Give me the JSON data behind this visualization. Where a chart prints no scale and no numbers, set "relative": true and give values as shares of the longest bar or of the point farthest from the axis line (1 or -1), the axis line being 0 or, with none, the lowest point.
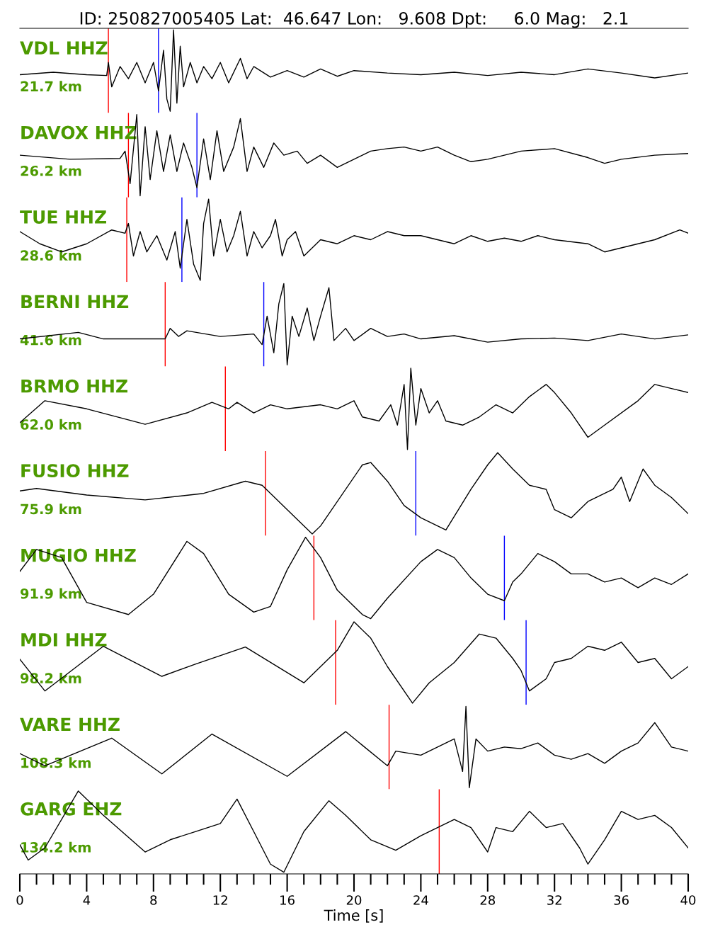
{
  "chart_data": [
    {
      "type": "line",
      "relative": true,
      "title": "ID: 250827005405 Lat:  46.647 Lon:   9.608 Dpt:     6.0 Mag:   2.1",
      "annotations": [
        "VDL HHZ",
        "21.7 km"
      ],
      "xlim": [
        0,
        40
      ],
      "tick_labels": false,
      "series": [
        {
          "color": "#000000",
          "x": [
            0,
            2,
            4,
            5.2,
            5.3,
            5.5,
            6,
            6.5,
            7,
            7.5,
            8,
            8.3,
            8.6,
            8.8,
            9.0,
            9.2,
            9.4,
            9.6,
            9.8,
            10.2,
            10.6,
            11,
            11.5,
            12,
            12.5,
            13.2,
            13.6,
            14,
            15,
            16,
            17,
            18,
            19,
            20,
            22,
            24,
            26,
            28,
            30,
            32,
            34,
            36,
            38,
            40
          ],
          "values": [
            0.45,
            0.48,
            0.45,
            0.44,
            0.6,
            0.3,
            0.55,
            0.4,
            0.6,
            0.35,
            0.6,
            0.25,
            0.75,
            0.15,
            0.0,
            1.0,
            0.1,
            0.8,
            0.3,
            0.6,
            0.35,
            0.55,
            0.4,
            0.6,
            0.35,
            0.65,
            0.4,
            0.55,
            0.42,
            0.5,
            0.42,
            0.52,
            0.43,
            0.5,
            0.47,
            0.45,
            0.48,
            0.44,
            0.48,
            0.45,
            0.52,
            0.47,
            0.41,
            0.47
          ]
        }
      ],
      "ref_lines": [
        {
          "axis": "x",
          "value": 5.3,
          "color": "#ff0000"
        },
        {
          "axis": "x",
          "value": 8.3,
          "color": "#0000ff"
        }
      ]
    },
    {
      "type": "line",
      "relative": true,
      "annotations": [
        "DAVOX HHZ",
        "26.2 km"
      ],
      "xlim": [
        0,
        40
      ],
      "tick_labels": false,
      "series": [
        {
          "color": "#000000",
          "x": [
            0,
            3,
            6,
            6.3,
            6.6,
            7.0,
            7.2,
            7.5,
            7.8,
            8.2,
            8.6,
            9,
            9.4,
            9.8,
            10.3,
            10.6,
            11,
            11.4,
            11.8,
            12.2,
            12.8,
            13.2,
            13.6,
            14,
            14.6,
            15.2,
            15.8,
            16.6,
            17.2,
            18,
            19,
            20,
            21,
            22,
            23,
            24,
            25,
            26,
            27,
            28,
            29,
            30,
            32,
            34,
            35,
            36,
            38,
            40
          ],
          "values": [
            0.5,
            0.45,
            0.46,
            0.55,
            0.15,
            1.0,
            0.0,
            0.85,
            0.2,
            0.8,
            0.3,
            0.75,
            0.3,
            0.65,
            0.35,
            0.1,
            0.7,
            0.2,
            0.8,
            0.3,
            0.6,
            0.95,
            0.3,
            0.6,
            0.35,
            0.65,
            0.5,
            0.55,
            0.4,
            0.5,
            0.35,
            0.45,
            0.55,
            0.58,
            0.6,
            0.55,
            0.6,
            0.5,
            0.42,
            0.45,
            0.5,
            0.55,
            0.58,
            0.47,
            0.4,
            0.45,
            0.5,
            0.52
          ]
        }
      ],
      "ref_lines": [
        {
          "axis": "x",
          "value": 6.5,
          "color": "#ff0000"
        },
        {
          "axis": "x",
          "value": 10.6,
          "color": "#0000ff"
        }
      ]
    },
    {
      "type": "line",
      "relative": true,
      "annotations": [
        "TUE HHZ",
        "28.6 km"
      ],
      "xlim": [
        0,
        40
      ],
      "tick_labels": false,
      "series": [
        {
          "color": "#000000",
          "x": [
            0,
            1.2,
            2.5,
            4,
            5.5,
            6.3,
            6.5,
            6.8,
            7.2,
            7.6,
            8.2,
            8.8,
            9.3,
            9.6,
            10,
            10.4,
            10.8,
            11.0,
            11.3,
            11.6,
            12,
            12.4,
            12.8,
            13.2,
            13.6,
            14,
            14.5,
            15,
            15.3,
            15.7,
            16,
            16.5,
            17,
            18,
            19,
            20,
            21,
            22,
            23,
            24,
            25,
            26,
            27,
            28,
            29,
            30,
            31,
            32,
            34,
            35,
            36,
            38,
            39.5,
            40
          ],
          "values": [
            0.6,
            0.45,
            0.35,
            0.45,
            0.62,
            0.58,
            0.7,
            0.3,
            0.6,
            0.35,
            0.55,
            0.25,
            0.6,
            0.15,
            0.75,
            0.2,
            0.0,
            0.7,
            1.0,
            0.3,
            0.75,
            0.35,
            0.55,
            0.85,
            0.3,
            0.6,
            0.4,
            0.55,
            0.75,
            0.3,
            0.5,
            0.6,
            0.3,
            0.5,
            0.45,
            0.55,
            0.5,
            0.6,
            0.55,
            0.55,
            0.5,
            0.45,
            0.55,
            0.48,
            0.52,
            0.48,
            0.55,
            0.5,
            0.45,
            0.35,
            0.4,
            0.5,
            0.62,
            0.58
          ]
        }
      ],
      "ref_lines": [
        {
          "axis": "x",
          "value": 6.4,
          "color": "#ff0000"
        },
        {
          "axis": "x",
          "value": 9.7,
          "color": "#0000ff"
        }
      ]
    },
    {
      "type": "line",
      "relative": true,
      "annotations": [
        "BERNI HHZ",
        "41.6 km"
      ],
      "xlim": [
        0,
        40
      ],
      "tick_labels": false,
      "series": [
        {
          "color": "#000000",
          "x": [
            0,
            3.5,
            5,
            8.7,
            9,
            9.5,
            10,
            12,
            14,
            14.5,
            14.8,
            15.2,
            15.5,
            15.8,
            16.0,
            16.3,
            16.7,
            17.2,
            17.6,
            18,
            18.5,
            18.8,
            19.5,
            20,
            21,
            22,
            23,
            24,
            26,
            28,
            30,
            32,
            34,
            36,
            38,
            40
          ],
          "values": [
            0.32,
            0.4,
            0.32,
            0.32,
            0.45,
            0.35,
            0.42,
            0.35,
            0.38,
            0.25,
            0.6,
            0.15,
            0.75,
            1.0,
            0.0,
            0.6,
            0.35,
            0.7,
            0.3,
            0.6,
            0.95,
            0.3,
            0.45,
            0.3,
            0.45,
            0.35,
            0.38,
            0.32,
            0.36,
            0.28,
            0.32,
            0.33,
            0.3,
            0.38,
            0.32,
            0.37
          ]
        }
      ],
      "ref_lines": [
        {
          "axis": "x",
          "value": 8.7,
          "color": "#ff0000"
        },
        {
          "axis": "x",
          "value": 14.6,
          "color": "#0000ff"
        }
      ]
    },
    {
      "type": "line",
      "relative": true,
      "annotations": [
        "BRMO HHZ",
        "62.0 km"
      ],
      "xlim": [
        0,
        40
      ],
      "tick_labels": false,
      "series": [
        {
          "color": "#000000",
          "x": [
            0,
            1.5,
            4,
            7.5,
            10,
            11.5,
            12.5,
            13,
            14,
            15,
            16,
            18,
            19,
            20,
            20.5,
            21.5,
            22.2,
            22.6,
            23.0,
            23.2,
            23.4,
            23.7,
            24,
            24.5,
            25,
            25.5,
            26.5,
            27.5,
            28.5,
            29.5,
            30.5,
            31.5,
            32,
            33,
            34,
            35,
            37,
            38,
            39,
            40
          ],
          "values": [
            0.33,
            0.6,
            0.5,
            0.31,
            0.45,
            0.58,
            0.5,
            0.58,
            0.45,
            0.55,
            0.5,
            0.55,
            0.5,
            0.6,
            0.4,
            0.35,
            0.55,
            0.3,
            0.8,
            0.0,
            1.0,
            0.3,
            0.75,
            0.45,
            0.6,
            0.35,
            0.3,
            0.4,
            0.55,
            0.45,
            0.65,
            0.8,
            0.7,
            0.45,
            0.15,
            0.3,
            0.6,
            0.8,
            0.75,
            0.7
          ]
        }
      ],
      "ref_lines": [
        {
          "axis": "x",
          "value": 12.3,
          "color": "#ff0000"
        }
      ]
    },
    {
      "type": "line",
      "relative": true,
      "annotations": [
        "FUSIO HHZ",
        "75.9 km"
      ],
      "xlim": [
        0,
        40
      ],
      "tick_labels": false,
      "series": [
        {
          "color": "#000000",
          "x": [
            0,
            1,
            4,
            7.5,
            11,
            13.5,
            14.5,
            17.5,
            18,
            20.5,
            21,
            22,
            23,
            24,
            25,
            25.5,
            27,
            28,
            28.6,
            29.5,
            30.5,
            31.5,
            32,
            33,
            34,
            35.5,
            36,
            36.5,
            37.3,
            38,
            39,
            40
          ],
          "values": [
            0.53,
            0.56,
            0.48,
            0.42,
            0.5,
            0.65,
            0.6,
            0.0,
            0.1,
            0.85,
            0.88,
            0.65,
            0.35,
            0.2,
            0.1,
            0.05,
            0.55,
            0.85,
            1.0,
            0.8,
            0.6,
            0.55,
            0.3,
            0.2,
            0.4,
            0.55,
            0.7,
            0.4,
            0.8,
            0.6,
            0.45,
            0.25
          ]
        }
      ],
      "ref_lines": [
        {
          "axis": "x",
          "value": 14.7,
          "color": "#ff0000"
        },
        {
          "axis": "x",
          "value": 23.7,
          "color": "#0000ff"
        }
      ]
    },
    {
      "type": "line",
      "relative": true,
      "annotations": [
        "MUGIO HHZ",
        "91.9 km"
      ],
      "xlim": [
        0,
        40
      ],
      "tick_labels": false,
      "series": [
        {
          "color": "#000000",
          "x": [
            0,
            1,
            2.5,
            4,
            6.5,
            8,
            10,
            11,
            12.5,
            14,
            15,
            16,
            17.1,
            18,
            19,
            20.5,
            21,
            22,
            24,
            25,
            26,
            27,
            28,
            29,
            29.5,
            30,
            31,
            32,
            33,
            34,
            35,
            36,
            37,
            38,
            39,
            40
          ],
          "values": [
            0.58,
            0.85,
            0.75,
            0.2,
            0.05,
            0.3,
            0.95,
            0.8,
            0.3,
            0.08,
            0.15,
            0.6,
            1.0,
            0.75,
            0.35,
            0.05,
            0.0,
            0.25,
            0.7,
            0.85,
            0.75,
            0.5,
            0.3,
            0.22,
            0.45,
            0.55,
            0.8,
            0.7,
            0.55,
            0.55,
            0.45,
            0.5,
            0.38,
            0.5,
            0.42,
            0.55
          ]
        }
      ],
      "ref_lines": [
        {
          "axis": "x",
          "value": 17.6,
          "color": "#ff0000"
        },
        {
          "axis": "x",
          "value": 29.0,
          "color": "#0000ff"
        }
      ]
    },
    {
      "type": "line",
      "relative": true,
      "annotations": [
        "MDI HHZ",
        "98.2 km"
      ],
      "xlim": [
        0,
        40
      ],
      "tick_labels": false,
      "series": [
        {
          "color": "#000000",
          "x": [
            0,
            1.5,
            5,
            8.5,
            10.5,
            13.5,
            17,
            19,
            20,
            21,
            22,
            23.5,
            24.5,
            26,
            27.5,
            28.5,
            29.5,
            30,
            30.5,
            31.5,
            32,
            33,
            34,
            35,
            36,
            37,
            38,
            39,
            40
          ],
          "values": [
            0.54,
            0.15,
            0.7,
            0.33,
            0.48,
            0.69,
            0.25,
            0.65,
            1.0,
            0.8,
            0.45,
            0.0,
            0.25,
            0.5,
            0.85,
            0.8,
            0.55,
            0.4,
            0.15,
            0.3,
            0.5,
            0.55,
            0.7,
            0.65,
            0.75,
            0.5,
            0.55,
            0.3,
            0.45
          ]
        }
      ],
      "ref_lines": [
        {
          "axis": "x",
          "value": 18.9,
          "color": "#ff0000"
        },
        {
          "axis": "x",
          "value": 30.3,
          "color": "#0000ff"
        }
      ]
    },
    {
      "type": "line",
      "relative": true,
      "annotations": [
        "VARE HHZ",
        "108.3 km"
      ],
      "xlim": [
        0,
        40
      ],
      "tick_labels": false,
      "series": [
        {
          "color": "#000000",
          "x": [
            0,
            1.5,
            5.5,
            8.5,
            11.5,
            16,
            19.5,
            22,
            22.5,
            24,
            25,
            26,
            26.5,
            26.7,
            26.9,
            27.3,
            28,
            29,
            30,
            31,
            32,
            33,
            34,
            35,
            36,
            37,
            38,
            39,
            40
          ],
          "values": [
            0.42,
            0.27,
            0.61,
            0.17,
            0.66,
            0.14,
            0.69,
            0.27,
            0.45,
            0.4,
            0.5,
            0.6,
            0.2,
            1.0,
            0.0,
            0.6,
            0.45,
            0.5,
            0.48,
            0.55,
            0.4,
            0.35,
            0.42,
            0.3,
            0.45,
            0.55,
            0.8,
            0.5,
            0.45
          ]
        }
      ],
      "ref_lines": [
        {
          "axis": "x",
          "value": 22.1,
          "color": "#ff0000"
        }
      ]
    },
    {
      "type": "line",
      "relative": true,
      "annotations": [
        "GARG EHZ",
        "134.2 km"
      ],
      "xlim": [
        0,
        40
      ],
      "xlabel": "Time [s]",
      "xticks": [
        0,
        {
          "value": 1,
          "label": null
        },
        {
          "value": 2,
          "label": null
        },
        {
          "value": 3,
          "label": null
        },
        4,
        {
          "value": 5,
          "label": null
        },
        {
          "value": 6,
          "label": null
        },
        {
          "value": 7,
          "label": null
        },
        8,
        {
          "value": 9,
          "label": null
        },
        {
          "value": 10,
          "label": null
        },
        {
          "value": 11,
          "label": null
        },
        12,
        {
          "value": 13,
          "label": null
        },
        {
          "value": 14,
          "label": null
        },
        {
          "value": 15,
          "label": null
        },
        16,
        {
          "value": 17,
          "label": null
        },
        {
          "value": 18,
          "label": null
        },
        {
          "value": 19,
          "label": null
        },
        20,
        {
          "value": 21,
          "label": null
        },
        {
          "value": 22,
          "label": null
        },
        {
          "value": 23,
          "label": null
        },
        24,
        {
          "value": 25,
          "label": null
        },
        {
          "value": 26,
          "label": null
        },
        {
          "value": 27,
          "label": null
        },
        28,
        {
          "value": 29,
          "label": null
        },
        {
          "value": 30,
          "label": null
        },
        {
          "value": 31,
          "label": null
        },
        32,
        {
          "value": 33,
          "label": null
        },
        {
          "value": 34,
          "label": null
        },
        {
          "value": 35,
          "label": null
        },
        36,
        {
          "value": 37,
          "label": null
        },
        {
          "value": 38,
          "label": null
        },
        {
          "value": 39,
          "label": null
        },
        40
      ],
      "series": [
        {
          "color": "#000000",
          "x": [
            0,
            0.5,
            1.5,
            3.5,
            5,
            7.5,
            9,
            10.5,
            12,
            13,
            14,
            15,
            15.8,
            17,
            18.5,
            19.5,
            21,
            22.5,
            24,
            25,
            26,
            27,
            28,
            28.5,
            29.5,
            30.5,
            31.5,
            32.5,
            33.5,
            34,
            35,
            36,
            37,
            38,
            39,
            40
          ],
          "values": [
            0.34,
            0.15,
            0.3,
            1.0,
            0.7,
            0.25,
            0.4,
            0.5,
            0.6,
            0.9,
            0.5,
            0.1,
            0.0,
            0.5,
            0.88,
            0.7,
            0.4,
            0.27,
            0.45,
            0.55,
            0.65,
            0.55,
            0.25,
            0.55,
            0.5,
            0.75,
            0.55,
            0.6,
            0.3,
            0.1,
            0.4,
            0.75,
            0.65,
            0.7,
            0.55,
            0.3
          ]
        }
      ],
      "ref_lines": [
        {
          "axis": "x",
          "value": 25.1,
          "color": "#ff0000"
        }
      ]
    }
  ]
}
